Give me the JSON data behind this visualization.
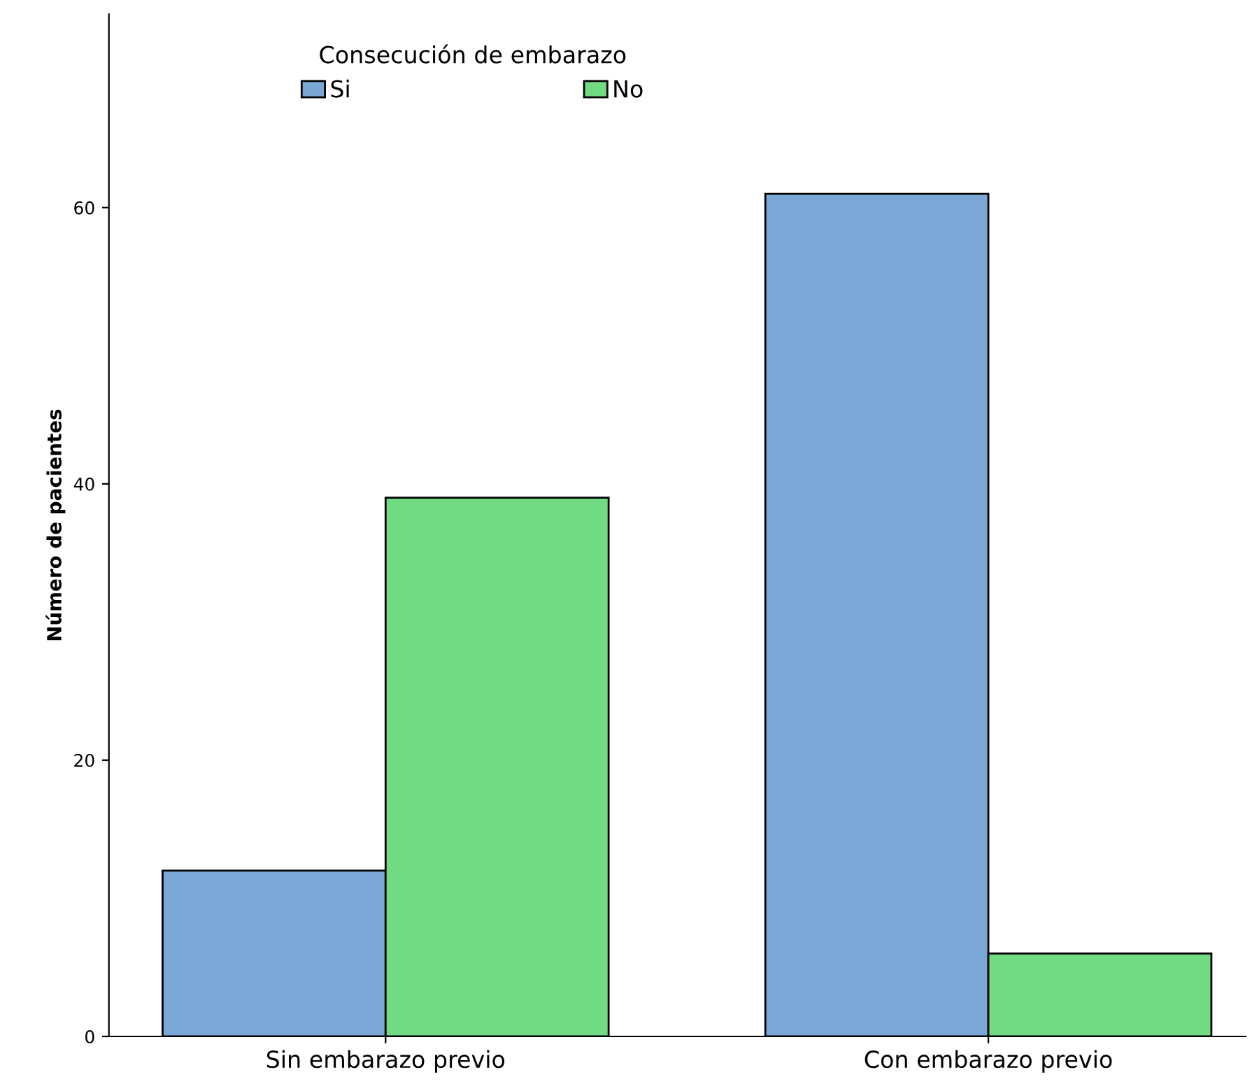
{
  "chart_data": {
    "type": "bar",
    "ylabel": "Número de pacientes",
    "legend_title": "Consecución de embarazo",
    "legend": "top",
    "grid": false,
    "categories": [
      "Sin embarazo previo",
      "Con embarazo previo"
    ],
    "series": [
      {
        "name": "Si",
        "color": "#7ba7d6",
        "values": [
          12,
          61
        ]
      },
      {
        "name": "No",
        "color": "#70db82",
        "values": [
          39,
          6
        ]
      }
    ],
    "ylim": [
      0,
      74
    ],
    "yticks": [
      0,
      20,
      40,
      60
    ]
  }
}
